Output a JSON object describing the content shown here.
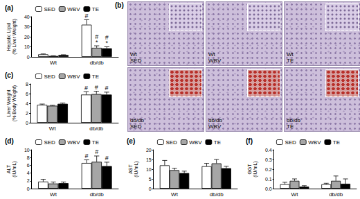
{
  "chart_data": [
    {
      "panel": "(a)",
      "type": "bar",
      "y_label": "Hepatic Lipid\n(% Liver Weight)",
      "categories": [
        "Wt",
        "db/db"
      ],
      "ylim": [
        0,
        40
      ],
      "yticks": [
        0,
        10,
        20,
        30,
        40
      ],
      "legend": "top-left",
      "series": [
        {
          "name": "SED",
          "color": "#ffffff",
          "values": [
            2.5,
            32
          ],
          "errors": [
            0.4,
            5
          ],
          "marks": [
            null,
            [
              "#"
            ]
          ]
        },
        {
          "name": "WBV",
          "color": "#a6a6a6",
          "values": [
            0.9,
            9
          ],
          "errors": [
            0.2,
            2
          ],
          "marks": [
            null,
            [
              "#",
              "*"
            ]
          ]
        },
        {
          "name": "TE",
          "color": "#000000",
          "values": [
            1.8,
            8.5
          ],
          "errors": [
            0.3,
            1.5
          ],
          "marks": [
            null,
            [
              "#",
              "*"
            ]
          ]
        }
      ]
    },
    {
      "panel": "(c)",
      "type": "bar",
      "y_label": "Liver Weight\n(% Body Weight)",
      "categories": [
        "Wt",
        "db/db"
      ],
      "ylim": [
        0,
        8
      ],
      "yticks": [
        0,
        2,
        4,
        6,
        8
      ],
      "legend": "top-left",
      "series": [
        {
          "name": "SED",
          "color": "#ffffff",
          "values": [
            3.7,
            5.8
          ],
          "errors": [
            0.15,
            0.6
          ],
          "marks": [
            null,
            [
              "#"
            ]
          ]
        },
        {
          "name": "WBV",
          "color": "#a6a6a6",
          "values": [
            3.5,
            5.9
          ],
          "errors": [
            0.1,
            0.6
          ],
          "marks": [
            null,
            [
              "#"
            ]
          ]
        },
        {
          "name": "TE",
          "color": "#000000",
          "values": [
            3.9,
            5.8
          ],
          "errors": [
            0.15,
            0.5
          ],
          "marks": [
            null,
            [
              "#"
            ]
          ]
        }
      ]
    },
    {
      "panel": "(d)",
      "type": "bar",
      "y_label": "ALT\n(IU/mL)",
      "categories": [
        "Wt",
        "db/db"
      ],
      "ylim": [
        0,
        10
      ],
      "yticks": [
        0,
        2,
        4,
        6,
        8,
        10
      ],
      "legend": "top-left",
      "series": [
        {
          "name": "SED",
          "color": "#ffffff",
          "values": [
            1.8,
            6.6
          ],
          "errors": [
            0.6,
            0.8
          ],
          "marks": [
            null,
            [
              "#"
            ]
          ]
        },
        {
          "name": "WBV",
          "color": "#a6a6a6",
          "values": [
            1.3,
            6.9
          ],
          "errors": [
            0.4,
            1.5
          ],
          "marks": [
            null,
            [
              "#"
            ]
          ]
        },
        {
          "name": "TE",
          "color": "#000000",
          "values": [
            1.4,
            5.8
          ],
          "errors": [
            0.3,
            1.0
          ],
          "marks": [
            null,
            [
              "#"
            ]
          ]
        }
      ]
    },
    {
      "panel": "(e)",
      "type": "bar",
      "y_label": "AST\n(IU/mL)",
      "categories": [
        "Wt",
        "db/db"
      ],
      "ylim": [
        0,
        20
      ],
      "yticks": [
        0,
        5,
        10,
        15,
        20
      ],
      "legend": "top-left",
      "series": [
        {
          "name": "SED",
          "color": "#ffffff",
          "values": [
            12,
            11.5
          ],
          "errors": [
            2.5,
            1.5
          ],
          "marks": [
            null,
            null
          ]
        },
        {
          "name": "WBV",
          "color": "#a6a6a6",
          "values": [
            9.5,
            13
          ],
          "errors": [
            1,
            2
          ],
          "marks": [
            null,
            null
          ]
        },
        {
          "name": "TE",
          "color": "#000000",
          "values": [
            8,
            10.5
          ],
          "errors": [
            1,
            1
          ],
          "marks": [
            null,
            null
          ]
        }
      ]
    },
    {
      "panel": "(f)",
      "type": "bar",
      "y_label": "GGT\n(IU/mL)",
      "categories": [
        "Wt",
        "db/db"
      ],
      "ylim": [
        0,
        0.4
      ],
      "yticks": [
        {
          "value": 0,
          "label": "0.0"
        },
        0.1,
        0.2,
        0.3,
        0.4
      ],
      "legend": "top-left",
      "series": [
        {
          "name": "SED",
          "color": "#ffffff",
          "values": [
            0.045,
            0.045
          ],
          "errors": [
            0.02,
            0.01
          ],
          "marks": [
            null,
            null
          ]
        },
        {
          "name": "WBV",
          "color": "#a6a6a6",
          "values": [
            0.08,
            0.08
          ],
          "errors": [
            0.02,
            0.05
          ],
          "marks": [
            null,
            null
          ]
        },
        {
          "name": "TE",
          "color": "#000000",
          "values": [
            0.02,
            0.05
          ],
          "errors": [
            0.01,
            0.05
          ],
          "marks": [
            null,
            null
          ]
        }
      ]
    }
  ],
  "image_panel": {
    "panel": "(b)",
    "images": [
      {
        "label": "Wt\nSED",
        "group": "Wt"
      },
      {
        "label": "Wt\nWBV",
        "group": "Wt"
      },
      {
        "label": "Wt\nTE",
        "group": "Wt"
      },
      {
        "label": "db/db\nSED",
        "group": "db/db"
      },
      {
        "label": "db/db\nWBV",
        "group": "db/db"
      },
      {
        "label": "db/db\nTE",
        "group": "db/db"
      }
    ]
  }
}
